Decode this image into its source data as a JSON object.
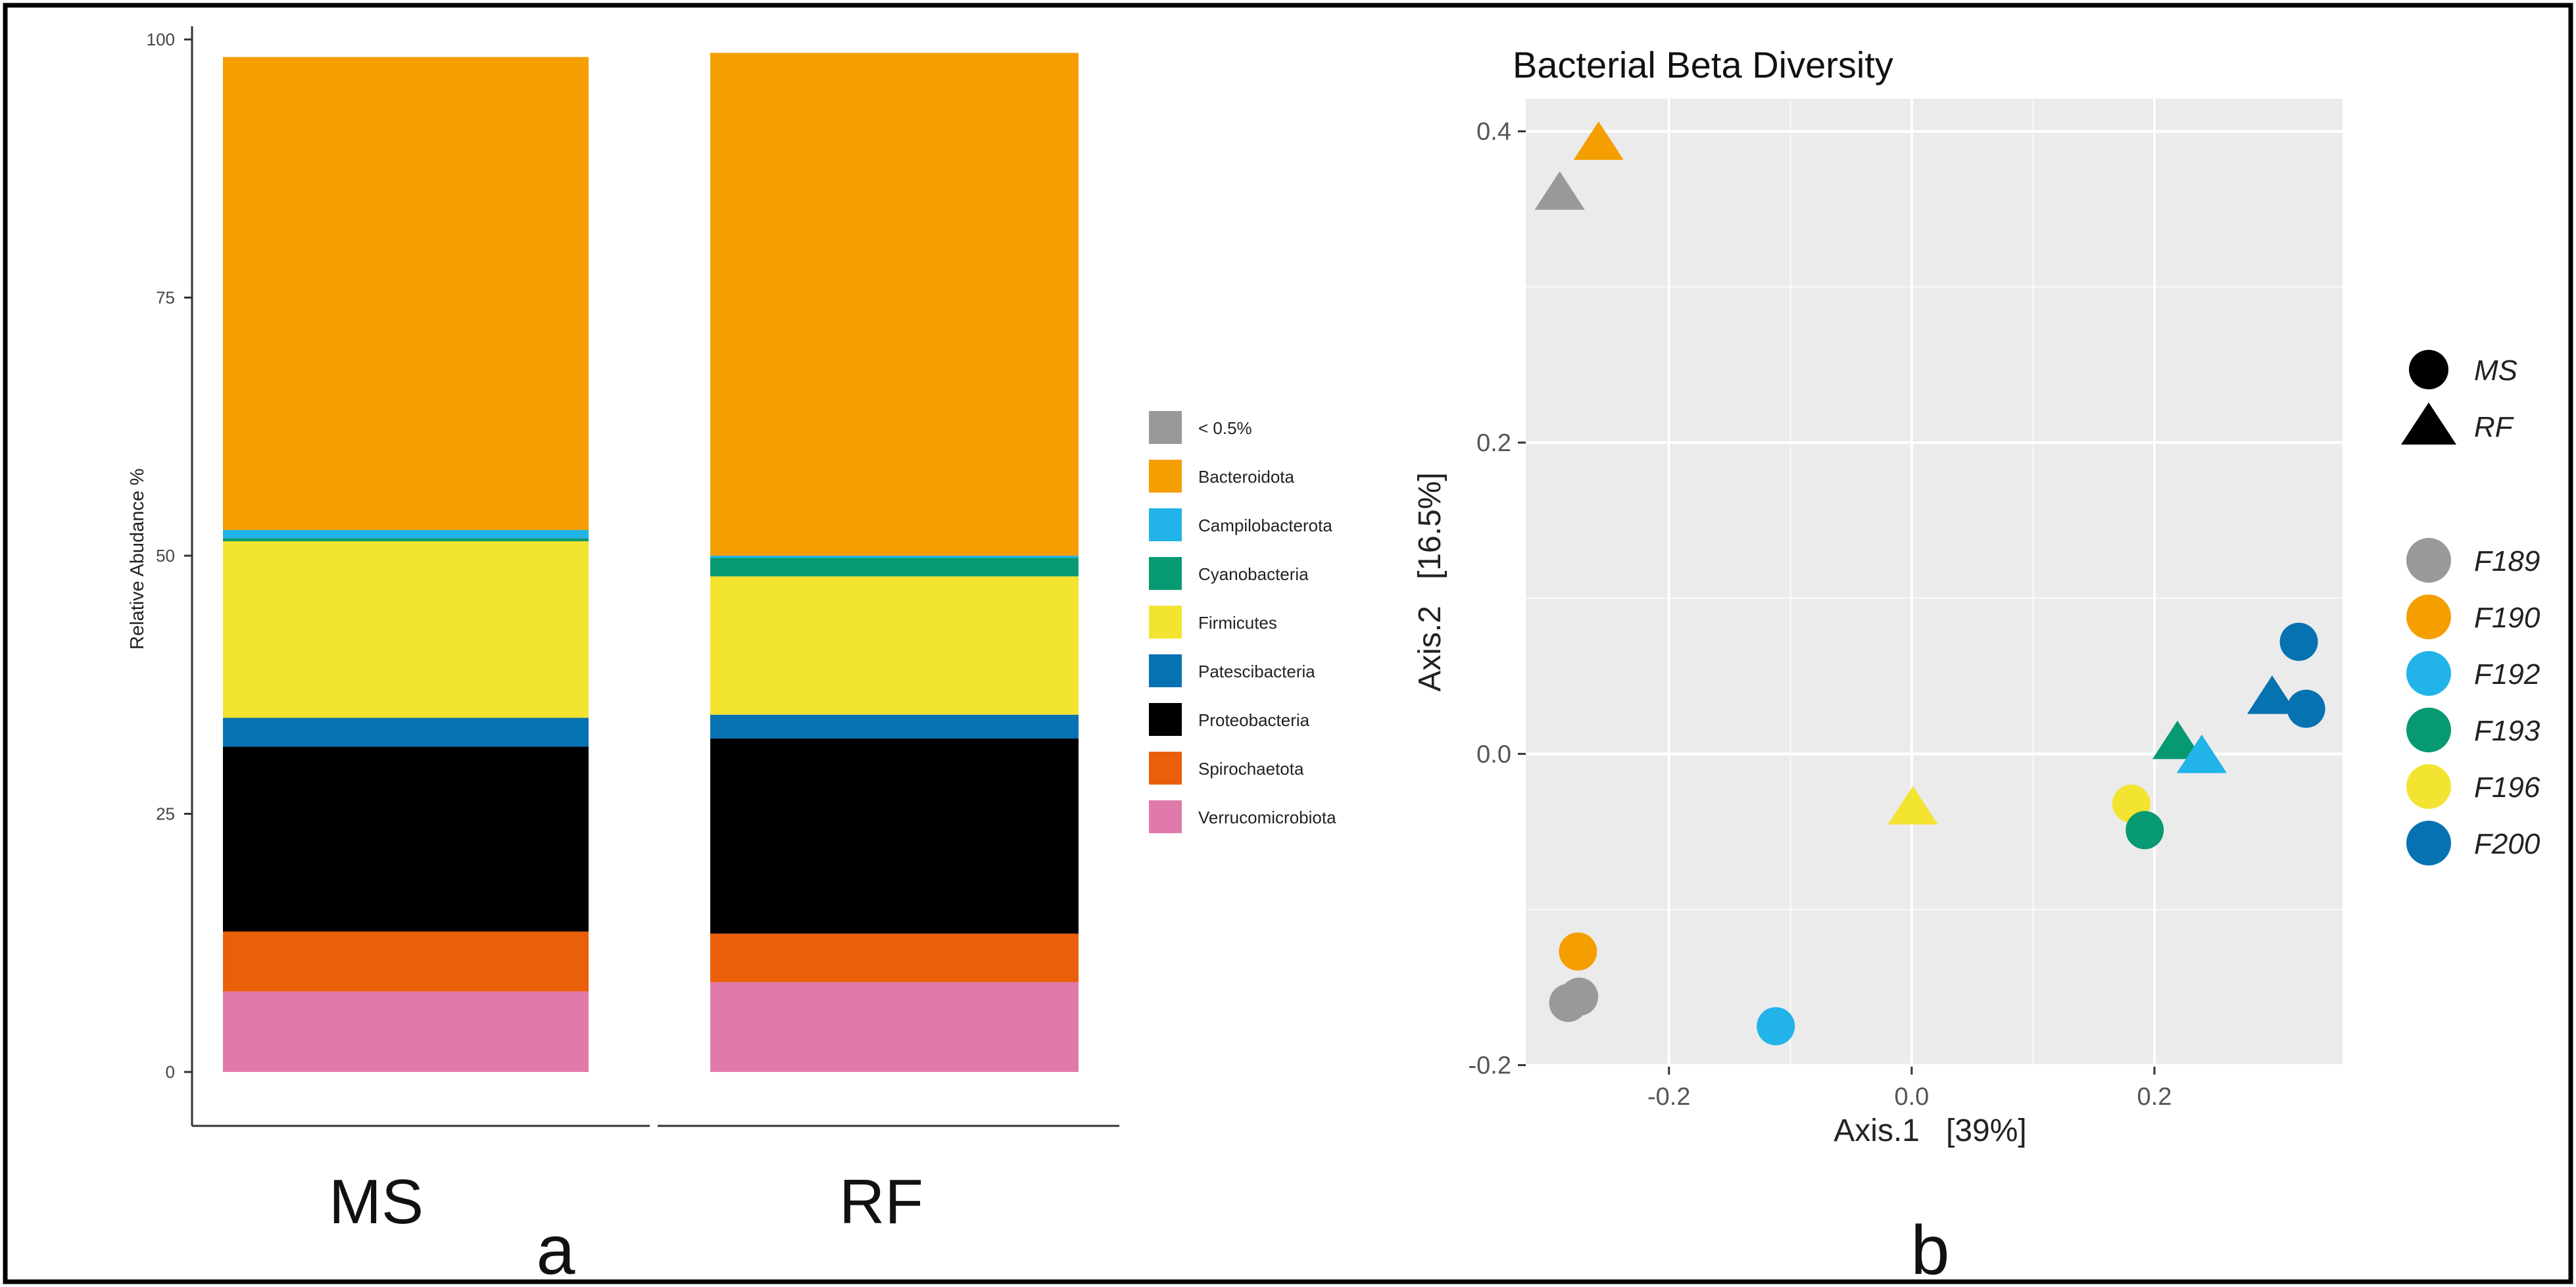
{
  "colors": {
    "gray": "#999999",
    "orange": "#F59E00",
    "sky": "#22B4E8",
    "green": "#079A72",
    "yellow": "#F2E430",
    "blue": "#0772B2",
    "black": "#000000",
    "vermillion": "#EA5F0A",
    "pink": "#E07AAB",
    "panel_bg": "#EBEBEB",
    "grid": "#FFFFFF"
  },
  "panel_labels": {
    "a": "a",
    "b": "b"
  },
  "chart_data": [
    {
      "type": "bar",
      "stacked": true,
      "ylabel": "Relative Abudance %",
      "xlabel": "",
      "ylim": [
        0,
        100
      ],
      "yticks": [
        0,
        25,
        50,
        75,
        100
      ],
      "categories": [
        "MS",
        "RF"
      ],
      "legend_position": "right",
      "series": [
        {
          "name": "Verrucomicrobiota",
          "color_key": "pink",
          "values": [
            7.8,
            8.7
          ]
        },
        {
          "name": "Spirochaetota",
          "color_key": "vermillion",
          "values": [
            5.8,
            4.7
          ]
        },
        {
          "name": "Proteobacteria",
          "color_key": "black",
          "values": [
            17.9,
            18.9
          ]
        },
        {
          "name": "Patescibacteria",
          "color_key": "blue",
          "values": [
            2.8,
            2.3
          ]
        },
        {
          "name": "Firmicutes",
          "color_key": "yellow",
          "values": [
            17.1,
            13.4
          ]
        },
        {
          "name": "Cyanobacteria",
          "color_key": "green",
          "values": [
            0.3,
            1.8
          ]
        },
        {
          "name": "Campilobacterota",
          "color_key": "sky",
          "values": [
            0.8,
            0.2
          ]
        },
        {
          "name": "Bacteroidota",
          "color_key": "orange",
          "values": [
            45.8,
            48.7
          ]
        },
        {
          "name": "< 0.5%",
          "color_key": "gray",
          "values": [
            0.0,
            0.0
          ]
        }
      ],
      "legend_order": [
        "< 0.5%",
        "Bacteroidota",
        "Campilobacterota",
        "Cyanobacteria",
        "Firmicutes",
        "Patescibacteria",
        "Proteobacteria",
        "Spirochaetota",
        "Verrucomicrobiota"
      ]
    },
    {
      "type": "scatter",
      "title": "Bacterial Beta Diversity",
      "xlabel": "Axis.1   [39%]",
      "ylabel": "Axis.2   [16.5%]",
      "xlim": [
        -0.318,
        0.355
      ],
      "ylim": [
        -0.201,
        0.421
      ],
      "xticks": [
        -0.2,
        0.0,
        0.2
      ],
      "yticks": [
        -0.2,
        0.0,
        0.2,
        0.4
      ],
      "xtick_labels": [
        "-0.2",
        "0.0",
        "0.2"
      ],
      "ytick_labels": [
        "-0.2",
        "0.0",
        "0.2",
        "0.4"
      ],
      "grid": true,
      "shape_legend": [
        {
          "label": "MS",
          "shape": "circle"
        },
        {
          "label": "RF",
          "shape": "triangle"
        }
      ],
      "color_legend": [
        {
          "label": "F189",
          "color_key": "gray"
        },
        {
          "label": "F190",
          "color_key": "orange"
        },
        {
          "label": "F192",
          "color_key": "sky"
        },
        {
          "label": "F193",
          "color_key": "green"
        },
        {
          "label": "F196",
          "color_key": "yellow"
        },
        {
          "label": "F200",
          "color_key": "blue"
        }
      ],
      "points": [
        {
          "group": "F189",
          "type": "RF",
          "x": -0.29,
          "y": 0.36
        },
        {
          "group": "F190",
          "type": "RF",
          "x": -0.258,
          "y": 0.392
        },
        {
          "group": "F189",
          "type": "MS",
          "x": -0.283,
          "y": -0.16
        },
        {
          "group": "F189",
          "type": "MS",
          "x": -0.274,
          "y": -0.156
        },
        {
          "group": "F190",
          "type": "MS",
          "x": -0.275,
          "y": -0.127
        },
        {
          "group": "F192",
          "type": "MS",
          "x": -0.112,
          "y": -0.175
        },
        {
          "group": "F196",
          "type": "RF",
          "x": 0.001,
          "y": -0.035
        },
        {
          "group": "F196",
          "type": "MS",
          "x": 0.181,
          "y": -0.032
        },
        {
          "group": "F193",
          "type": "MS",
          "x": 0.192,
          "y": -0.049
        },
        {
          "group": "F193",
          "type": "RF",
          "x": 0.219,
          "y": 0.007
        },
        {
          "group": "F192",
          "type": "RF",
          "x": 0.239,
          "y": -0.002
        },
        {
          "group": "F200",
          "type": "RF",
          "x": 0.297,
          "y": 0.036
        },
        {
          "group": "F200",
          "type": "MS",
          "x": 0.319,
          "y": 0.072
        },
        {
          "group": "F200",
          "type": "MS",
          "x": 0.325,
          "y": 0.029
        }
      ]
    }
  ]
}
